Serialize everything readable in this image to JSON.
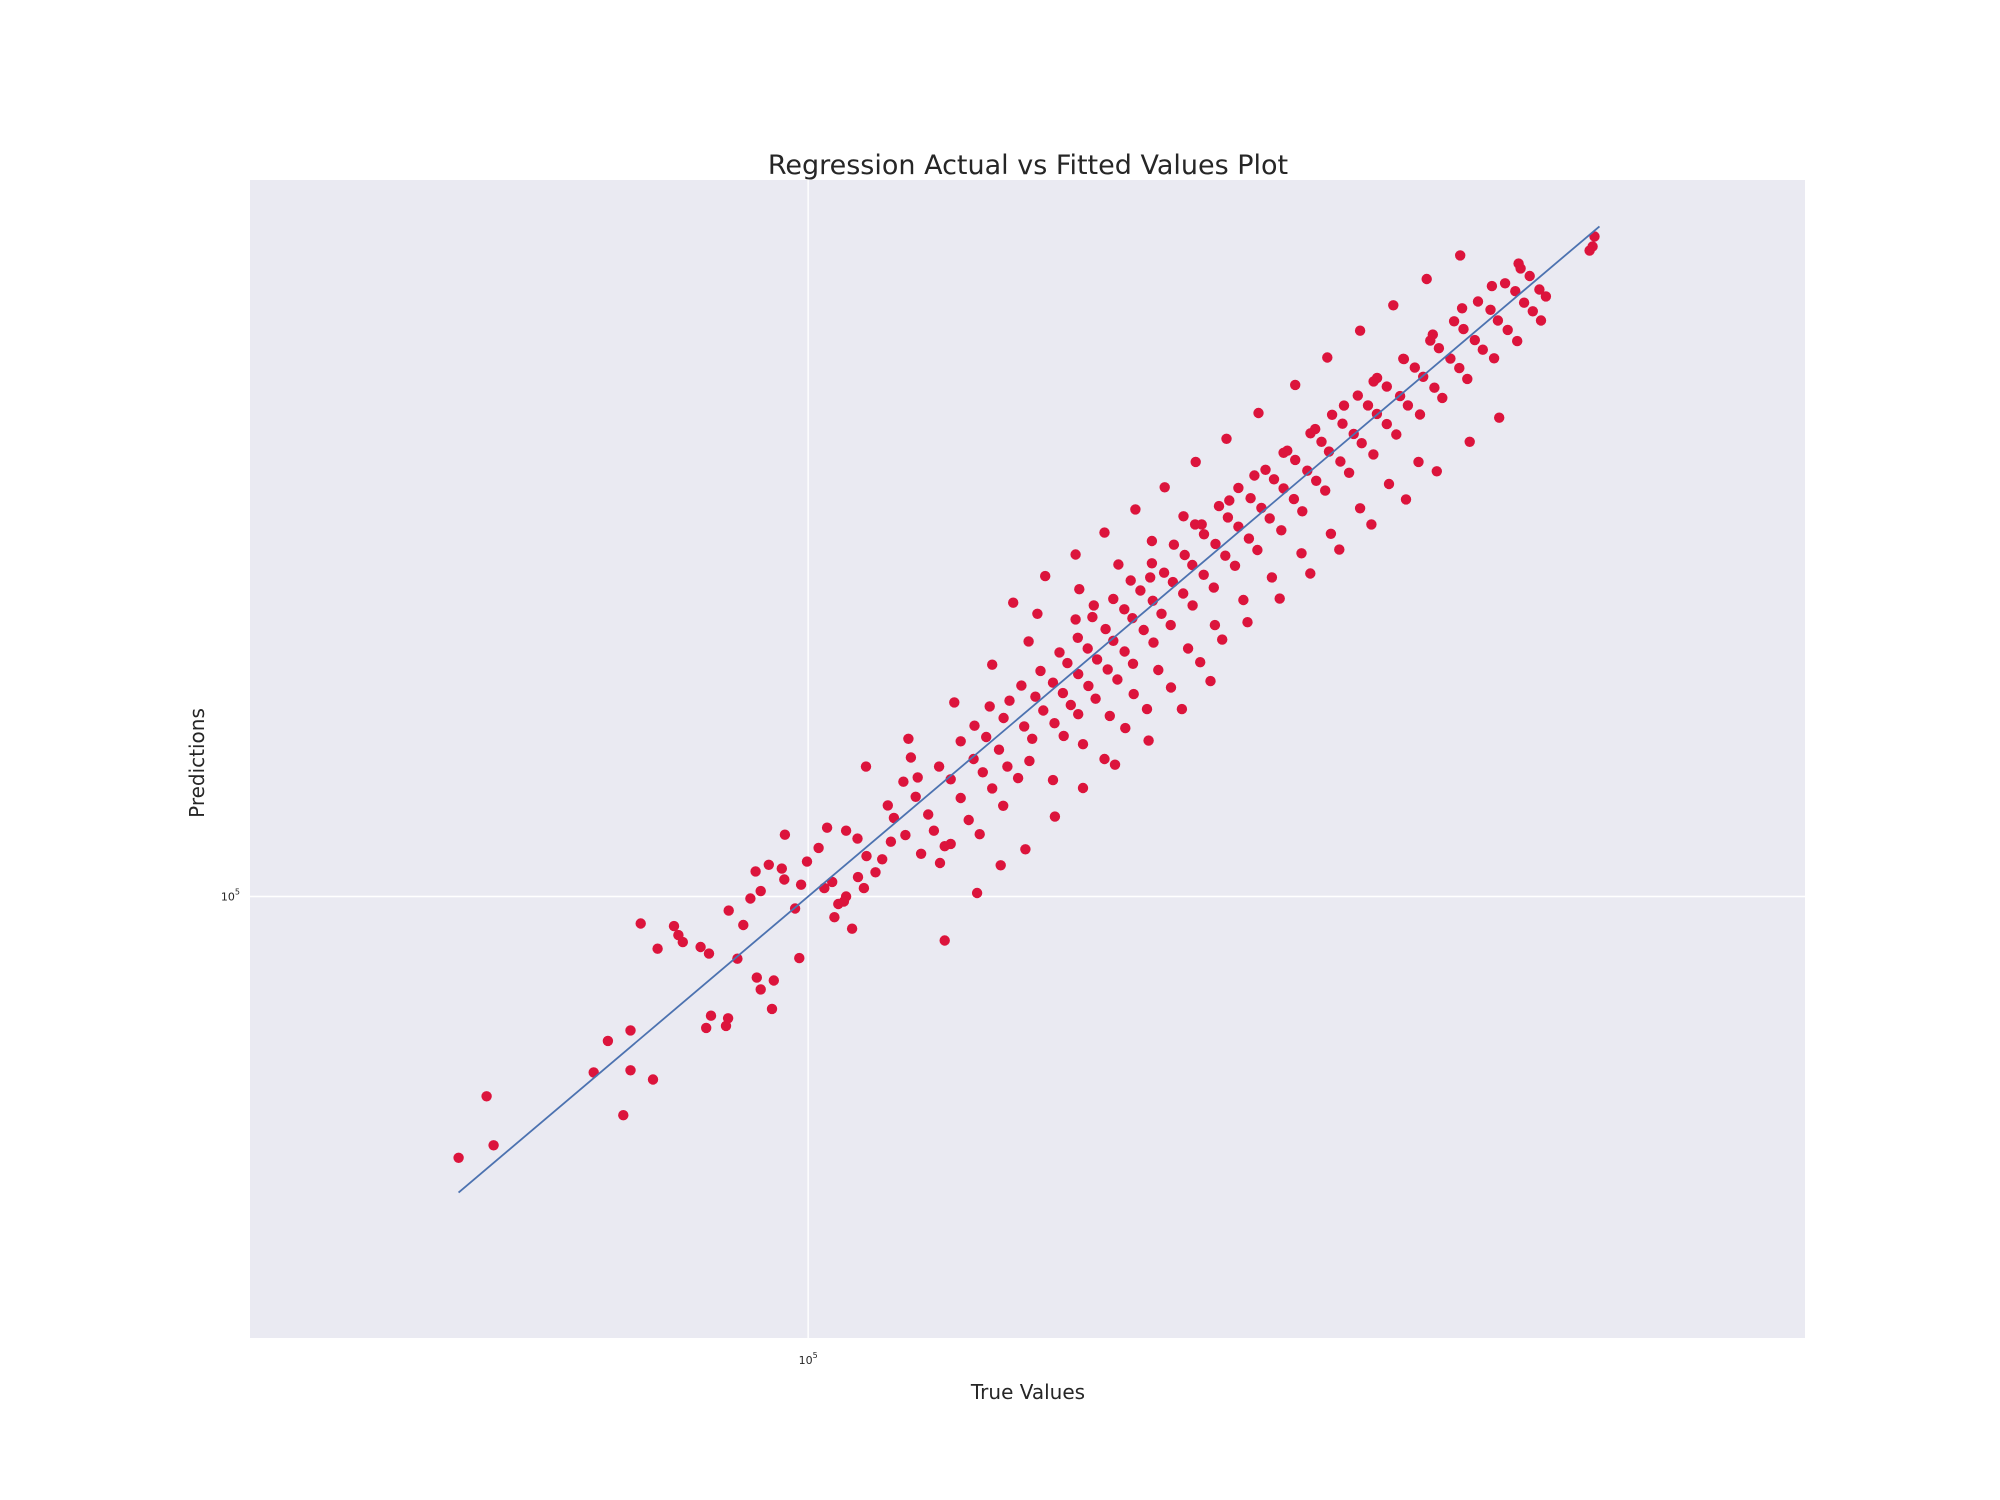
{
  "chart_data": {
    "type": "scatter",
    "title": "Regression Actual vs Fitted Values Plot",
    "xlabel": "True Values",
    "ylabel": "Predictions",
    "xscale": "log",
    "yscale": "log",
    "xlim": [
      38500,
      550000
    ],
    "ylim": [
      41000,
      425000
    ],
    "grid": true,
    "colors": {
      "background": "#eaeaf2",
      "grid": "#ffffff",
      "points": "#dc143c",
      "fit_line": "#4c72b0"
    },
    "xticks": [
      {
        "base": "10",
        "exp": "5",
        "value": 100000
      }
    ],
    "yticks": [
      {
        "base": "10",
        "exp": "5",
        "value": 100000
      }
    ],
    "fit_line": {
      "x": [
        55000,
        387000
      ],
      "y": [
        55000,
        387000
      ]
    },
    "series": [
      {
        "points": [
          [
            55000,
            59000
          ],
          [
            58400,
            60500
          ],
          [
            57700,
            66800
          ],
          [
            69300,
            70100
          ],
          [
            71000,
            74700
          ],
          [
            73800,
            70400
          ],
          [
            72900,
            64300
          ],
          [
            73800,
            76300
          ],
          [
            76700,
            69100
          ],
          [
            77300,
            90000
          ],
          [
            75100,
            94700
          ],
          [
            79500,
            94200
          ],
          [
            80100,
            92500
          ],
          [
            80700,
            91200
          ],
          [
            84400,
            89100
          ],
          [
            83200,
            90300
          ],
          [
            84700,
            78600
          ],
          [
            84000,
            76700
          ],
          [
            86900,
            77000
          ],
          [
            87200,
            78200
          ],
          [
            88600,
            88200
          ],
          [
            91600,
            84900
          ],
          [
            92200,
            82900
          ],
          [
            94300,
            84400
          ],
          [
            94000,
            79700
          ],
          [
            89500,
            94400
          ],
          [
            87300,
            97200
          ],
          [
            90600,
            99600
          ],
          [
            92200,
            101100
          ],
          [
            91400,
            105200
          ],
          [
            93500,
            106600
          ],
          [
            96000,
            103500
          ],
          [
            97800,
            97600
          ],
          [
            98800,
            102400
          ],
          [
            95600,
            105800
          ],
          [
            99800,
            107300
          ],
          [
            96100,
            113300
          ],
          [
            101800,
            110300
          ],
          [
            98500,
            88300
          ],
          [
            102800,
            101700
          ],
          [
            105300,
            98500
          ],
          [
            104600,
            95900
          ],
          [
            107800,
            93700
          ],
          [
            106300,
            99000
          ],
          [
            103300,
            114900
          ],
          [
            106700,
            114200
          ],
          [
            108800,
            112400
          ],
          [
            110500,
            108500
          ],
          [
            112200,
            105000
          ],
          [
            108900,
            104000
          ],
          [
            106700,
            100000
          ],
          [
            104200,
            103000
          ],
          [
            110000,
            101700
          ],
          [
            113500,
            107800
          ],
          [
            115200,
            111700
          ],
          [
            118100,
            113200
          ],
          [
            115800,
            117200
          ],
          [
            114600,
            120200
          ],
          [
            117700,
            126100
          ],
          [
            120200,
            122300
          ],
          [
            122800,
            118000
          ],
          [
            124000,
            114200
          ],
          [
            126300,
            110700
          ],
          [
            121300,
            109000
          ],
          [
            125300,
            107000
          ],
          [
            127600,
            111200
          ],
          [
            120600,
            127200
          ],
          [
            119200,
            132400
          ],
          [
            125100,
            130000
          ],
          [
            127600,
            126700
          ],
          [
            129800,
            122000
          ],
          [
            131600,
            116700
          ],
          [
            134100,
            113400
          ],
          [
            129800,
            136800
          ],
          [
            132700,
            132000
          ],
          [
            134800,
            128500
          ],
          [
            137000,
            124400
          ],
          [
            139600,
            120100
          ],
          [
            132900,
            141200
          ],
          [
            135600,
            138000
          ],
          [
            138600,
            134500
          ],
          [
            140600,
            130000
          ],
          [
            143200,
            127000
          ],
          [
            136400,
            146800
          ],
          [
            139700,
            143400
          ],
          [
            141100,
            148500
          ],
          [
            144700,
            141000
          ],
          [
            146700,
            137500
          ],
          [
            144000,
            153100
          ],
          [
            147500,
            149700
          ],
          [
            149500,
            145600
          ],
          [
            152400,
            141900
          ],
          [
            154800,
            138300
          ],
          [
            148800,
            157700
          ],
          [
            152000,
            154000
          ],
          [
            154600,
            150800
          ],
          [
            156700,
            147200
          ],
          [
            158700,
            144500
          ],
          [
            153700,
            163700
          ],
          [
            155800,
            160200
          ],
          [
            158700,
            156700
          ],
          [
            161500,
            153000
          ],
          [
            163500,
            149100
          ],
          [
            158600,
            168600
          ],
          [
            161300,
            165000
          ],
          [
            163900,
            161400
          ],
          [
            166900,
            158200
          ],
          [
            169700,
            155000
          ],
          [
            162600,
            175800
          ],
          [
            166300,
            171600
          ],
          [
            168500,
            167600
          ],
          [
            171800,
            164000
          ],
          [
            174300,
            160000
          ],
          [
            168500,
            182400
          ],
          [
            171700,
            178600
          ],
          [
            174100,
            175400
          ],
          [
            177500,
            171300
          ],
          [
            180500,
            167000
          ],
          [
            173600,
            189300
          ],
          [
            176500,
            185500
          ],
          [
            180300,
            181700
          ],
          [
            183000,
            177000
          ],
          [
            185900,
            173000
          ],
          [
            180000,
            196000
          ],
          [
            183800,
            192300
          ],
          [
            186600,
            188700
          ],
          [
            189900,
            184400
          ],
          [
            193000,
            180000
          ],
          [
            186900,
            203500
          ],
          [
            190400,
            199300
          ],
          [
            192900,
            195300
          ],
          [
            196700,
            191500
          ],
          [
            200100,
            186600
          ],
          [
            193800,
            212000
          ],
          [
            196800,
            207800
          ],
          [
            200700,
            203800
          ],
          [
            204100,
            199000
          ],
          [
            207500,
            195000
          ],
          [
            201900,
            220000
          ],
          [
            205000,
            215000
          ],
          [
            208700,
            211000
          ],
          [
            212500,
            206000
          ],
          [
            215600,
            201300
          ],
          [
            208700,
            228200
          ],
          [
            213100,
            223500
          ],
          [
            217100,
            219200
          ],
          [
            220200,
            214600
          ],
          [
            224600,
            209500
          ],
          [
            218600,
            236700
          ],
          [
            221800,
            232200
          ],
          [
            225500,
            228000
          ],
          [
            229500,
            223100
          ],
          [
            232800,
            217700
          ],
          [
            226900,
            246000
          ],
          [
            230000,
            241500
          ],
          [
            234800,
            236300
          ],
          [
            238400,
            231500
          ],
          [
            242100,
            227000
          ],
          [
            236100,
            254800
          ],
          [
            240600,
            250500
          ],
          [
            243700,
            245600
          ],
          [
            248500,
            240700
          ],
          [
            252200,
            235300
          ],
          [
            245000,
            264500
          ],
          [
            249400,
            259800
          ],
          [
            254200,
            254500
          ],
          [
            257700,
            249800
          ],
          [
            262900,
            244200
          ],
          [
            256000,
            275000
          ],
          [
            260500,
            269600
          ],
          [
            264500,
            265000
          ],
          [
            269000,
            259600
          ],
          [
            273400,
            254200
          ],
          [
            264600,
            285000
          ],
          [
            269000,
            280000
          ],
          [
            275200,
            274700
          ],
          [
            278900,
            269600
          ],
          [
            284700,
            264700
          ],
          [
            276700,
            296200
          ],
          [
            282200,
            291000
          ],
          [
            286300,
            285600
          ],
          [
            291800,
            279400
          ],
          [
            295800,
            273700
          ],
          [
            289800,
            307300
          ],
          [
            294100,
            302600
          ],
          [
            299900,
            296300
          ],
          [
            304500,
            290700
          ],
          [
            308700,
            284400
          ],
          [
            301800,
            319500
          ],
          [
            306700,
            314500
          ],
          [
            312700,
            307600
          ],
          [
            317000,
            301700
          ],
          [
            323200,
            296500
          ],
          [
            314400,
            332500
          ],
          [
            321200,
            327000
          ],
          [
            325300,
            320000
          ],
          [
            330800,
            314000
          ],
          [
            336200,
            307000
          ],
          [
            329300,
            345000
          ],
          [
            335100,
            339500
          ],
          [
            340200,
            331700
          ],
          [
            345300,
            326000
          ],
          [
            350200,
            320000
          ],
          [
            349200,
            340700
          ],
          [
            353100,
            336000
          ],
          [
            343500,
            350100
          ],
          [
            338200,
            355500
          ],
          [
            382500,
            371600
          ],
          [
            380500,
            368500
          ],
          [
            383700,
            379200
          ],
          [
            166000,
            132000
          ],
          [
            172000,
            140500
          ],
          [
            178500,
            146000
          ],
          [
            186000,
            152500
          ],
          [
            195500,
            160500
          ],
          [
            203000,
            168000
          ],
          [
            212000,
            174000
          ],
          [
            224000,
            182500
          ],
          [
            236000,
            192000
          ],
          [
            248000,
            201500
          ],
          [
            262000,
            212000
          ],
          [
            278000,
            223000
          ],
          [
            293000,
            236000
          ],
          [
            310000,
            250500
          ],
          [
            326000,
            263000
          ],
          [
            142000,
            181000
          ],
          [
            150000,
            191000
          ],
          [
            158000,
            199500
          ],
          [
            166000,
            208500
          ],
          [
            175000,
            218500
          ],
          [
            184000,
            228500
          ],
          [
            194000,
            240500
          ],
          [
            204500,
            252000
          ],
          [
            216000,
            265500
          ],
          [
            230000,
            281000
          ],
          [
            243000,
            297000
          ],
          [
            257000,
            313500
          ],
          [
            272000,
            330000
          ],
          [
            288000,
            348000
          ],
          [
            305000,
            365000
          ],
          [
            110400,
            130000
          ],
          [
            118700,
            137500
          ],
          [
            128400,
            148000
          ],
          [
            137000,
            159700
          ],
          [
            145800,
            167400
          ],
          [
            126300,
            91500
          ],
          [
            133500,
            100700
          ],
          [
            139000,
            106500
          ],
          [
            145000,
            110000
          ],
          [
            152500,
            117500
          ],
          [
            160000,
            124500
          ],
          [
            169000,
            130500
          ],
          [
            179000,
            137000
          ],
          [
            189500,
            146000
          ],
          [
            199000,
            154500
          ],
          [
            196000,
            212000
          ],
          [
            205500,
            222500
          ],
          [
            214500,
            234000
          ],
          [
            225500,
            245000
          ],
          [
            238000,
            257000
          ],
          [
            250000,
            269500
          ],
          [
            263000,
            283000
          ],
          [
            277000,
            296000
          ],
          [
            291000,
            311000
          ],
          [
            306000,
            328000
          ],
          [
            322000,
            343000
          ],
          [
            337000,
            359000
          ],
          [
            170000,
            195500
          ],
          [
            180000,
            205000
          ],
          [
            190000,
            215500
          ],
          [
            158000,
            175000
          ],
          [
            163000,
            180000
          ],
          [
            159000,
            186000
          ],
          [
            179500,
            190500
          ],
          [
            148000,
            177000
          ],
          [
            146000,
            131500
          ],
          [
            152000,
            126500
          ],
          [
            160000,
            136000
          ],
          [
            167500,
            144000
          ],
          [
            174500,
            150500
          ],
          [
            182000,
            158000
          ],
          [
            191500,
            165000
          ],
          [
            200500,
            173000
          ],
          [
            210500,
            182000
          ],
          [
            221000,
            190500
          ],
          [
            232500,
            200000
          ],
          [
            244500,
            208000
          ],
          [
            257000,
            219000
          ],
          [
            270000,
            230000
          ],
          [
            284000,
            240500
          ]
        ]
      }
    ]
  }
}
